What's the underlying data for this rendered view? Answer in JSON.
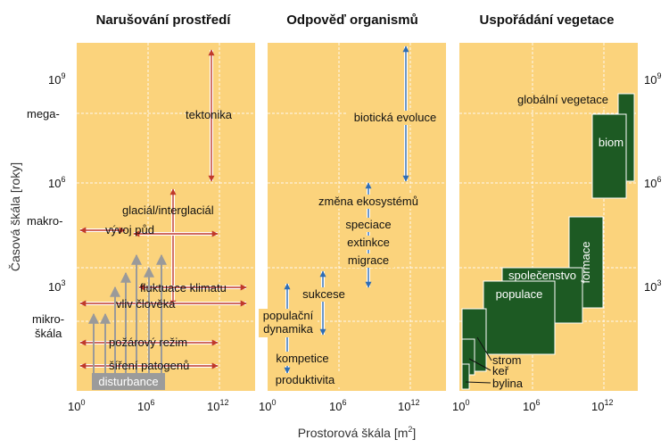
{
  "panels": [
    {
      "title": "Narušování prostředí"
    },
    {
      "title": "Odpověď organismů"
    },
    {
      "title": "Uspořádání vegetace"
    }
  ],
  "y_axis": {
    "title": "Časová škála [roky]",
    "ticks": {
      "e9": "10",
      "e9_exp": "9",
      "e6": "10",
      "e6_exp": "6",
      "e3": "10",
      "e3_exp": "3"
    },
    "classes": {
      "mega": "mega-",
      "makro": "makro-",
      "mikro1": "mikro-",
      "mikro2": "škála"
    }
  },
  "x_axis": {
    "title": "Prostorová škála [m",
    "title_exp": "2",
    "title_end": "]",
    "ticks": {
      "e0": "10",
      "e0_exp": "0",
      "e6": "10",
      "e6_exp": "6",
      "e12": "10",
      "e12_exp": "12"
    }
  },
  "labels": {
    "tektonika": "tektonika",
    "glacial": "glaciál/interglaciál",
    "vyvoj_pud": "vývoj půd",
    "fluktuace": "fluktuace klimatu",
    "vliv": "vliv člověka",
    "pozarovy": "požárový režim",
    "sireni": "šíření patogenů",
    "disturbance": "disturbance",
    "bioticka": "biotická evoluce",
    "zmena": "změna ekosystémů",
    "speciace": "speciace",
    "extinkce": "extinkce",
    "migrace": "migrace",
    "sukcese": "sukcese",
    "populacni1": "populační",
    "populacni2": "dynamika",
    "kompetice": "kompetice",
    "produktivita": "produktivita",
    "globalni": "globální vegetace",
    "biom": "biom",
    "formace": "formace",
    "spolecenstvo": "společenstvo",
    "populace": "populace",
    "strom": "strom",
    "ker": "keř",
    "bylina": "bylina"
  },
  "colors": {
    "panel_bg": "#fbd37c",
    "dark_green": "#1d5a23",
    "arrow_red": "#c0392b",
    "arrow_blue": "#2e6db5",
    "gray_arrow": "#9a9a9a",
    "disturbance_box": "#9b9b9b"
  }
}
